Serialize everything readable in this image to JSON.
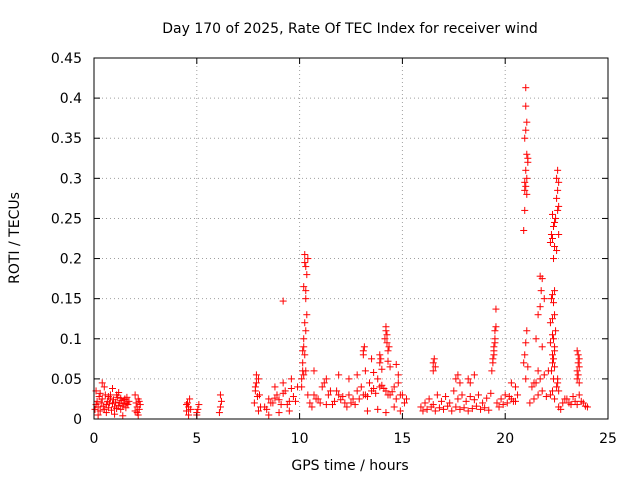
{
  "chart_data": {
    "type": "scatter",
    "title": "Day 170 of 2025, Rate Of TEC Index for receiver wind",
    "xlabel": "GPS time / hours",
    "ylabel": "ROTI / TECUs",
    "xlim": [
      0,
      25
    ],
    "ylim": [
      0,
      0.45
    ],
    "xticks": [
      0,
      5,
      10,
      15,
      20,
      25
    ],
    "xtick_labels": [
      "0",
      "5",
      "10",
      "15",
      "20",
      "25"
    ],
    "yticks": [
      0,
      0.05,
      0.1,
      0.15,
      0.2,
      0.25,
      0.3,
      0.35,
      0.4,
      0.45
    ],
    "ytick_labels": [
      "0",
      "0.05",
      "0.1",
      "0.15",
      "0.2",
      "0.25",
      "0.3",
      "0.35",
      "0.4",
      "0.45"
    ],
    "grid": true,
    "marker": "plus",
    "marker_color": "#ff0000",
    "series": [
      {
        "x": [
          0.05,
          0.1,
          0.15,
          0.2,
          0.25,
          0.3,
          0.35,
          0.4,
          0.45,
          0.5,
          0.55,
          0.6,
          0.65,
          0.7,
          0.75,
          0.8,
          0.85,
          0.9,
          0.95,
          1.0,
          1.05,
          1.1,
          1.15,
          1.2,
          1.25,
          1.3,
          1.35,
          1.4,
          1.45,
          1.5,
          1.55,
          1.6,
          1.65,
          1.7,
          0.1,
          0.3,
          0.5,
          0.7,
          0.9,
          1.1,
          1.3,
          1.5,
          0.2,
          0.6,
          1.0,
          1.4,
          0.4,
          0.8,
          1.2,
          1.6,
          2.0,
          2.05,
          2.1,
          2.15,
          2.2,
          2.25,
          2.0,
          2.1,
          2.2,
          2.15,
          4.5,
          4.55,
          4.6,
          4.65,
          4.7,
          4.6,
          4.5,
          5.0,
          5.05,
          5.1,
          5.0,
          6.1,
          6.15,
          6.2,
          6.15,
          7.8,
          7.85,
          7.9,
          7.95,
          8.0,
          8.05,
          8.1,
          7.9,
          8.0,
          7.85,
          8.3,
          8.5,
          8.7,
          8.9,
          9.1,
          9.3,
          9.5,
          9.7,
          9.9,
          8.4,
          8.6,
          8.8,
          9.0,
          9.2,
          9.4,
          9.6,
          9.8,
          8.5,
          9.0,
          9.5,
          9.2,
          8.8,
          9.6,
          9.2,
          10.1,
          10.15,
          10.2,
          10.25,
          10.3,
          10.35,
          10.4,
          10.2,
          10.3,
          10.25,
          10.15,
          10.35,
          10.2,
          10.3,
          10.25,
          10.1,
          10.4,
          10.2,
          10.3,
          10.25,
          10.15,
          10.3,
          10.5,
          10.7,
          10.9,
          11.1,
          11.3,
          11.5,
          11.7,
          11.9,
          12.1,
          10.6,
          10.8,
          11.0,
          11.2,
          11.4,
          11.6,
          11.8,
          12.0,
          10.7,
          11.3,
          11.9,
          12.2,
          12.4,
          12.6,
          12.8,
          13.0,
          13.2,
          13.4,
          13.6,
          13.8,
          14.0,
          14.2,
          14.4,
          14.6,
          14.8,
          15.0,
          15.2,
          12.3,
          12.5,
          12.7,
          12.9,
          13.1,
          13.3,
          13.5,
          13.7,
          13.9,
          14.1,
          14.3,
          14.5,
          14.7,
          14.9,
          15.1,
          12.4,
          12.8,
          13.2,
          13.6,
          14.0,
          14.4,
          14.8,
          13.1,
          13.5,
          13.9,
          14.3,
          14.7,
          13.3,
          13.8,
          14.2,
          14.6,
          14.9,
          13.1,
          13.15,
          13.9,
          13.95,
          14.15,
          14.2,
          14.25,
          14.3,
          14.25,
          14.2,
          14.35,
          15.9,
          16.1,
          16.3,
          16.5,
          16.7,
          16.9,
          17.1,
          17.3,
          17.5,
          17.7,
          17.9,
          18.1,
          18.3,
          18.5,
          18.7,
          18.9,
          19.1,
          19.3,
          16.0,
          16.2,
          16.4,
          16.6,
          16.8,
          17.0,
          17.2,
          17.4,
          17.6,
          17.8,
          18.0,
          18.2,
          18.4,
          18.6,
          18.8,
          19.0,
          19.2,
          16.5,
          16.55,
          16.6,
          16.5,
          17.6,
          17.7,
          17.8,
          18.2,
          18.3,
          18.5,
          19.35,
          19.4,
          19.45,
          19.5,
          19.55,
          19.45,
          19.5,
          19.4,
          19.55,
          19.5,
          19.45,
          19.6,
          19.8,
          20.0,
          20.2,
          20.4,
          20.6,
          19.7,
          19.9,
          20.1,
          20.3,
          20.5,
          20.3,
          20.5,
          20.9,
          20.95,
          21.0,
          21.05,
          21.1,
          20.95,
          21.0,
          21.05,
          21.0,
          20.95,
          21.05,
          21.0,
          21.1,
          20.95,
          21.0,
          21.05,
          20.9,
          21.0,
          21.0,
          21.05,
          21.1,
          20.95,
          21.2,
          21.4,
          21.6,
          21.8,
          22.0,
          22.2,
          22.4,
          21.3,
          21.5,
          21.7,
          21.9,
          22.1,
          22.3,
          21.5,
          21.6,
          21.7,
          21.8,
          21.4,
          21.6,
          21.7,
          21.8,
          21.75,
          21.9,
          22.2,
          22.25,
          22.3,
          22.35,
          22.4,
          22.45,
          22.3,
          22.35,
          22.4,
          22.25,
          22.3,
          22.4,
          22.35,
          22.2,
          22.3,
          22.4,
          22.45,
          22.3,
          22.35,
          22.4,
          22.2,
          22.3,
          22.4,
          22.35,
          22.3,
          22.25,
          22.4,
          22.35,
          22.5,
          22.55,
          22.6,
          22.55,
          22.5,
          22.6,
          22.55,
          22.5,
          22.6,
          22.55,
          22.5,
          22.6,
          22.55,
          22.6,
          22.8,
          23.0,
          23.2,
          23.4,
          23.6,
          23.8,
          24.0,
          22.7,
          22.9,
          23.1,
          23.3,
          23.5,
          23.7,
          23.9,
          23.5,
          23.55,
          23.6,
          23.55,
          23.5,
          23.6,
          23.55,
          23.5,
          23.6
        ],
        "y": [
          0.012,
          0.018,
          0.022,
          0.015,
          0.028,
          0.01,
          0.02,
          0.025,
          0.016,
          0.012,
          0.03,
          0.018,
          0.022,
          0.014,
          0.02,
          0.026,
          0.011,
          0.019,
          0.024,
          0.015,
          0.021,
          0.013,
          0.027,
          0.017,
          0.02,
          0.012,
          0.023,
          0.016,
          0.019,
          0.025,
          0.014,
          0.02,
          0.018,
          0.022,
          0.035,
          0.032,
          0.04,
          0.028,
          0.038,
          0.03,
          0.026,
          0.024,
          0.005,
          0.008,
          0.006,
          0.004,
          0.045,
          0.03,
          0.033,
          0.027,
          0.01,
          0.02,
          0.015,
          0.025,
          0.012,
          0.018,
          0.03,
          0.008,
          0.022,
          0.005,
          0.01,
          0.02,
          0.015,
          0.025,
          0.012,
          0.005,
          0.018,
          0.005,
          0.012,
          0.018,
          0.008,
          0.008,
          0.015,
          0.022,
          0.03,
          0.02,
          0.035,
          0.045,
          0.028,
          0.05,
          0.03,
          0.015,
          0.055,
          0.01,
          0.04,
          0.015,
          0.025,
          0.02,
          0.03,
          0.018,
          0.035,
          0.022,
          0.028,
          0.04,
          0.012,
          0.02,
          0.026,
          0.024,
          0.032,
          0.018,
          0.038,
          0.022,
          0.005,
          0.008,
          0.01,
          0.045,
          0.04,
          0.05,
          0.147,
          0.04,
          0.06,
          0.09,
          0.12,
          0.15,
          0.18,
          0.2,
          0.165,
          0.19,
          0.205,
          0.07,
          0.13,
          0.1,
          0.16,
          0.08,
          0.05,
          0.03,
          0.055,
          0.11,
          0.195,
          0.085,
          0.06,
          0.02,
          0.03,
          0.025,
          0.04,
          0.018,
          0.035,
          0.022,
          0.03,
          0.028,
          0.015,
          0.025,
          0.02,
          0.045,
          0.03,
          0.018,
          0.035,
          0.024,
          0.06,
          0.05,
          0.055,
          0.02,
          0.03,
          0.025,
          0.035,
          0.04,
          0.03,
          0.045,
          0.038,
          0.05,
          0.042,
          0.035,
          0.03,
          0.04,
          0.045,
          0.03,
          0.025,
          0.015,
          0.02,
          0.018,
          0.025,
          0.03,
          0.028,
          0.035,
          0.032,
          0.04,
          0.038,
          0.03,
          0.034,
          0.025,
          0.03,
          0.02,
          0.05,
          0.055,
          0.06,
          0.058,
          0.062,
          0.065,
          0.055,
          0.08,
          0.075,
          0.07,
          0.072,
          0.068,
          0.01,
          0.012,
          0.008,
          0.015,
          0.01,
          0.085,
          0.09,
          0.08,
          0.075,
          0.1,
          0.11,
          0.095,
          0.085,
          0.105,
          0.115,
          0.09,
          0.015,
          0.02,
          0.025,
          0.018,
          0.03,
          0.022,
          0.028,
          0.02,
          0.035,
          0.025,
          0.03,
          0.022,
          0.028,
          0.024,
          0.03,
          0.02,
          0.026,
          0.032,
          0.01,
          0.012,
          0.015,
          0.01,
          0.014,
          0.012,
          0.016,
          0.01,
          0.015,
          0.012,
          0.014,
          0.01,
          0.013,
          0.016,
          0.012,
          0.014,
          0.011,
          0.07,
          0.075,
          0.065,
          0.06,
          0.05,
          0.055,
          0.045,
          0.05,
          0.045,
          0.055,
          0.06,
          0.075,
          0.09,
          0.1,
          0.115,
          0.085,
          0.095,
          0.07,
          0.137,
          0.11,
          0.08,
          0.02,
          0.025,
          0.03,
          0.028,
          0.022,
          0.03,
          0.015,
          0.018,
          0.02,
          0.025,
          0.022,
          0.045,
          0.04,
          0.235,
          0.26,
          0.29,
          0.3,
          0.32,
          0.35,
          0.36,
          0.37,
          0.39,
          0.285,
          0.33,
          0.413,
          0.325,
          0.295,
          0.31,
          0.28,
          0.07,
          0.05,
          0.095,
          0.11,
          0.065,
          0.08,
          0.02,
          0.025,
          0.03,
          0.035,
          0.028,
          0.03,
          0.025,
          0.04,
          0.045,
          0.05,
          0.055,
          0.06,
          0.035,
          0.1,
          0.13,
          0.14,
          0.09,
          0.045,
          0.06,
          0.178,
          0.175,
          0.16,
          0.15,
          0.22,
          0.23,
          0.225,
          0.24,
          0.245,
          0.25,
          0.255,
          0.2,
          0.215,
          0.15,
          0.155,
          0.16,
          0.145,
          0.12,
          0.125,
          0.13,
          0.11,
          0.105,
          0.1,
          0.09,
          0.095,
          0.08,
          0.085,
          0.075,
          0.07,
          0.06,
          0.065,
          0.05,
          0.3,
          0.31,
          0.295,
          0.285,
          0.275,
          0.265,
          0.26,
          0.21,
          0.23,
          0.05,
          0.04,
          0.035,
          0.045,
          0.015,
          0.02,
          0.025,
          0.018,
          0.022,
          0.03,
          0.02,
          0.015,
          0.012,
          0.025,
          0.02,
          0.028,
          0.018,
          0.022,
          0.016,
          0.06,
          0.07,
          0.075,
          0.08,
          0.085,
          0.065,
          0.055,
          0.05,
          0.045
        ]
      }
    ]
  }
}
